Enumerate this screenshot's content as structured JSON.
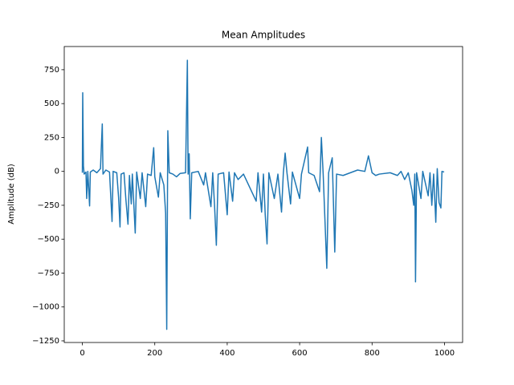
{
  "chart_data": {
    "type": "line",
    "title": "Mean Amplitudes",
    "y_label": "Amplitude (dB)",
    "x": [
      0,
      1,
      3,
      5,
      10,
      12,
      15,
      20,
      22,
      30,
      40,
      50,
      55,
      57,
      65,
      75,
      82,
      85,
      95,
      100,
      104,
      107,
      115,
      120,
      126,
      130,
      135,
      138,
      146,
      150,
      160,
      165,
      175,
      180,
      190,
      197,
      200,
      210,
      215,
      225,
      230,
      233,
      236,
      240,
      250,
      260,
      270,
      285,
      290,
      292,
      295,
      298,
      302,
      320,
      335,
      340,
      355,
      360,
      365,
      370,
      375,
      390,
      400,
      405,
      415,
      420,
      430,
      445,
      480,
      485,
      495,
      500,
      505,
      510,
      515,
      530,
      540,
      550,
      555,
      560,
      565,
      575,
      580,
      600,
      605,
      622,
      625,
      640,
      655,
      660,
      665,
      675,
      680,
      690,
      697,
      702,
      720,
      740,
      760,
      780,
      790,
      800,
      810,
      820,
      850,
      870,
      880,
      890,
      900,
      910,
      915,
      918,
      920,
      923,
      935,
      940,
      955,
      960,
      965,
      970,
      976,
      980,
      985,
      990,
      993,
      999
    ],
    "series": [
      {
        "name": "Mean Amplitudes",
        "color": "#1f77b4",
        "values": [
          -10,
          580,
          40,
          -20,
          -5,
          -200,
          0,
          -255,
          -5,
          10,
          -10,
          20,
          350,
          -20,
          10,
          -5,
          -370,
          0,
          -10,
          -190,
          -410,
          -20,
          -10,
          -200,
          -390,
          -30,
          -240,
          -20,
          -455,
          -5,
          -200,
          -10,
          -260,
          -20,
          -30,
          175,
          -40,
          -190,
          -10,
          -100,
          -310,
          -1165,
          300,
          -10,
          -20,
          -40,
          -15,
          -10,
          820,
          -20,
          130,
          -350,
          -10,
          0,
          -100,
          -10,
          -260,
          -10,
          -250,
          -545,
          -20,
          -10,
          -320,
          -5,
          -220,
          -10,
          -60,
          -20,
          -220,
          -10,
          -300,
          -20,
          -320,
          -535,
          -10,
          -200,
          -20,
          -300,
          -10,
          135,
          -10,
          -240,
          -5,
          -200,
          -20,
          180,
          -10,
          -30,
          -150,
          250,
          -20,
          -715,
          -10,
          100,
          -595,
          -20,
          -30,
          -10,
          10,
          0,
          115,
          -10,
          -30,
          -20,
          -10,
          -30,
          0,
          -60,
          -10,
          -140,
          -250,
          -20,
          -815,
          -10,
          -200,
          0,
          -180,
          -10,
          -250,
          -20,
          -375,
          20,
          -230,
          -270,
          0,
          -5
        ]
      }
    ],
    "xlim": [
      -50,
      1050
    ],
    "ylim": [
      -1262,
      921
    ],
    "xticks": [
      0,
      200,
      400,
      600,
      800,
      1000
    ],
    "yticks": [
      {
        "value": -1250,
        "label": "−1250"
      },
      {
        "value": -1000,
        "label": "−1000"
      },
      {
        "value": -750,
        "label": "−750"
      },
      {
        "value": -500,
        "label": "−500"
      },
      {
        "value": -250,
        "label": "−250"
      },
      0,
      250,
      500,
      750
    ]
  }
}
